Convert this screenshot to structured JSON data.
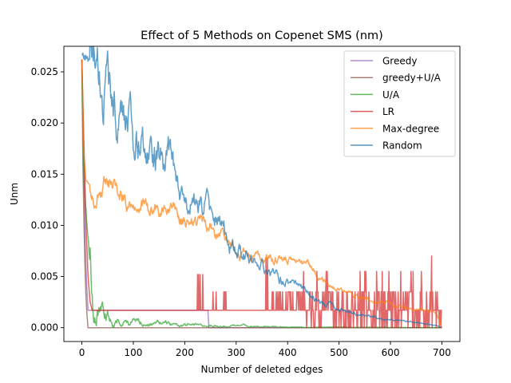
{
  "chart_data": {
    "type": "line",
    "title": "Effect of 5 Methods on Copenet SMS (nm)",
    "xlabel": "Number of deleted edges",
    "ylabel": "Unm",
    "xlim": [
      -35,
      735
    ],
    "ylim": [
      -0.00135,
      0.0275
    ],
    "xticks": [
      0,
      100,
      200,
      300,
      400,
      500,
      600,
      700
    ],
    "xtick_labels": [
      "0",
      "100",
      "200",
      "300",
      "400",
      "500",
      "600",
      "700"
    ],
    "yticks": [
      0.0,
      0.005,
      0.01,
      0.015,
      0.02,
      0.025
    ],
    "ytick_labels": [
      "0.000",
      "0.005",
      "0.010",
      "0.015",
      "0.020",
      "0.025"
    ],
    "grid": false,
    "legend_position": "top-right",
    "series": [
      {
        "name": "Greedy",
        "color": "#9467bd",
        "style": "step",
        "points": [
          [
            0,
            0.0262
          ],
          [
            3,
            0.018
          ],
          [
            6,
            0.009
          ],
          [
            9,
            0.0045
          ],
          [
            12,
            0.0017
          ],
          [
            245,
            0.0017
          ],
          [
            247,
            0.0
          ],
          [
            700,
            0.0
          ]
        ]
      },
      {
        "name": "greedy+U/A",
        "color": "#8c564b",
        "style": "step",
        "points": [
          [
            0,
            0.0262
          ],
          [
            2,
            0.016
          ],
          [
            4,
            0.0105
          ],
          [
            6,
            0.006
          ],
          [
            8,
            0.003
          ],
          [
            10,
            0.0012
          ],
          [
            12,
            0.0
          ],
          [
            700,
            0.0
          ]
        ]
      },
      {
        "name": "U/A",
        "color": "#2ca02c",
        "style": "noisy",
        "points": [
          [
            0,
            0.026
          ],
          [
            5,
            0.015
          ],
          [
            10,
            0.01
          ],
          [
            15,
            0.006
          ],
          [
            20,
            0.0035
          ],
          [
            25,
            0.002
          ],
          [
            35,
            0.0015
          ],
          [
            50,
            0.0011
          ],
          [
            70,
            0.0008
          ],
          [
            90,
            0.0006
          ],
          [
            120,
            0.0005
          ],
          [
            160,
            0.0004
          ],
          [
            200,
            0.0003
          ],
          [
            260,
            0.0002
          ],
          [
            320,
            0.00015
          ],
          [
            380,
            0.0001
          ],
          [
            430,
            5e-05
          ],
          [
            700,
            0.0
          ]
        ],
        "noise": 0.35
      },
      {
        "name": "LR",
        "color": "#d62728",
        "style": "lr",
        "points": [
          [
            0,
            0.0262
          ],
          [
            4,
            0.018
          ],
          [
            8,
            0.01
          ],
          [
            12,
            0.005
          ],
          [
            16,
            0.0025
          ],
          [
            20,
            0.0017
          ],
          [
            700,
            0.0017
          ]
        ]
      },
      {
        "name": "Max-degree",
        "color": "#ff7f0e",
        "style": "noisy",
        "points": [
          [
            0,
            0.0262
          ],
          [
            4,
            0.017
          ],
          [
            8,
            0.0145
          ],
          [
            20,
            0.0137
          ],
          [
            50,
            0.0133
          ],
          [
            80,
            0.0128
          ],
          [
            100,
            0.0123
          ],
          [
            130,
            0.0118
          ],
          [
            160,
            0.0112
          ],
          [
            200,
            0.0104
          ],
          [
            240,
            0.0097
          ],
          [
            260,
            0.0092
          ],
          [
            280,
            0.0088
          ],
          [
            300,
            0.0078
          ],
          [
            330,
            0.0072
          ],
          [
            360,
            0.0068
          ],
          [
            400,
            0.0066
          ],
          [
            440,
            0.006
          ],
          [
            460,
            0.005
          ],
          [
            480,
            0.004
          ],
          [
            500,
            0.0037
          ],
          [
            540,
            0.003
          ],
          [
            580,
            0.0025
          ],
          [
            620,
            0.0021
          ],
          [
            660,
            0.0017
          ],
          [
            690,
            0.0013
          ],
          [
            700,
            0.0
          ]
        ],
        "noise": 0.045
      },
      {
        "name": "Random",
        "color": "#1f77b4",
        "style": "noisy",
        "points": [
          [
            0,
            0.0268
          ],
          [
            10,
            0.0262
          ],
          [
            20,
            0.0253
          ],
          [
            40,
            0.0235
          ],
          [
            60,
            0.0222
          ],
          [
            80,
            0.021
          ],
          [
            100,
            0.02
          ],
          [
            120,
            0.0188
          ],
          [
            140,
            0.0175
          ],
          [
            160,
            0.0167
          ],
          [
            170,
            0.0162
          ],
          [
            185,
            0.0132
          ],
          [
            200,
            0.0118
          ],
          [
            220,
            0.0119
          ],
          [
            240,
            0.012
          ],
          [
            250,
            0.0108
          ],
          [
            270,
            0.0098
          ],
          [
            290,
            0.0085
          ],
          [
            300,
            0.0075
          ],
          [
            320,
            0.0068
          ],
          [
            340,
            0.006
          ],
          [
            360,
            0.0055
          ],
          [
            380,
            0.0048
          ],
          [
            400,
            0.0044
          ],
          [
            430,
            0.0036
          ],
          [
            460,
            0.0025
          ],
          [
            500,
            0.0019
          ],
          [
            540,
            0.0014
          ],
          [
            580,
            0.0009
          ],
          [
            620,
            0.0007
          ],
          [
            660,
            0.0004
          ],
          [
            690,
            0.0002
          ],
          [
            700,
            0.0
          ]
        ],
        "noise": 0.07
      }
    ]
  }
}
